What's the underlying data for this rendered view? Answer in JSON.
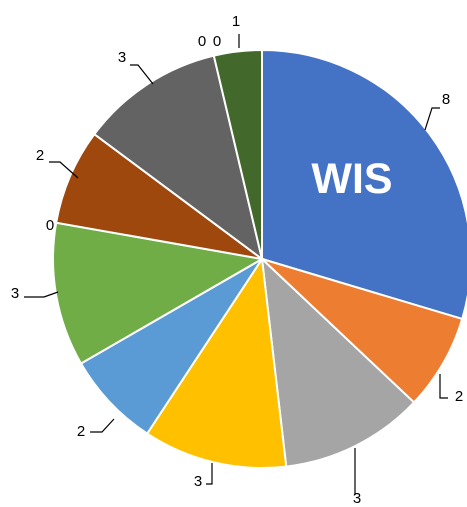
{
  "chart_data": {
    "type": "pie",
    "values": [
      8,
      2,
      3,
      3,
      2,
      3,
      0,
      2,
      3,
      0,
      0,
      1
    ],
    "colors": [
      "#4472C4",
      "#ED7D31",
      "#A5A5A5",
      "#FFC000",
      "#5B9BD5",
      "#70AD47",
      "#70AD47",
      "#9E480E",
      "#636363",
      "#636363",
      "#636363",
      "#43682B"
    ],
    "annotation": "WIS",
    "legend": "none"
  }
}
